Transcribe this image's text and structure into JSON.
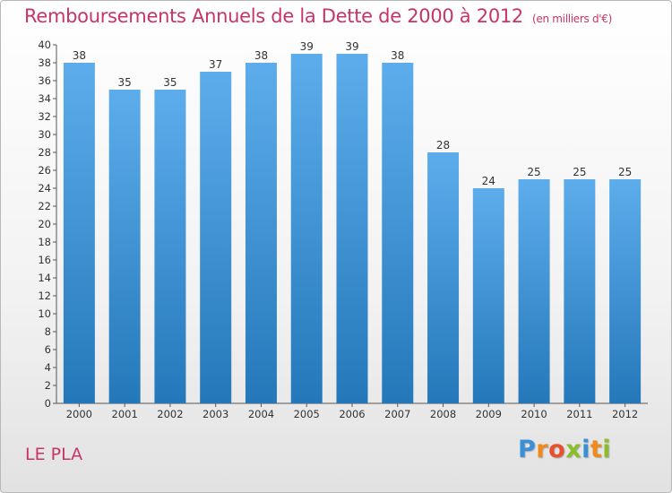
{
  "page": {
    "title": "Remboursements Annuels de la Dette de 2000 à 2012",
    "unit_note": "(en milliers d'€)",
    "commune": "LE PLA",
    "logo": {
      "letters": [
        "P",
        "r",
        "o",
        "x",
        "i",
        "t",
        "i"
      ],
      "colors": [
        "#3a8fd6",
        "#f08a1c",
        "#e8512e",
        "#8bbd2a",
        "#3a8fd6",
        "#f08a1c",
        "#8bbd2a"
      ]
    }
  },
  "chart_data": {
    "type": "bar",
    "categories": [
      "2000",
      "2001",
      "2002",
      "2003",
      "2004",
      "2005",
      "2006",
      "2007",
      "2008",
      "2009",
      "2010",
      "2011",
      "2012"
    ],
    "values": [
      38,
      35,
      35,
      37,
      38,
      39,
      39,
      38,
      28,
      24,
      25,
      25,
      25
    ],
    "ylim": [
      0,
      40
    ],
    "ytick_step": 2,
    "data_labels": true,
    "grid": false,
    "bar_color_top": "#5dadec",
    "bar_color_bottom": "#2478b9",
    "title_color": "#c8336a"
  }
}
